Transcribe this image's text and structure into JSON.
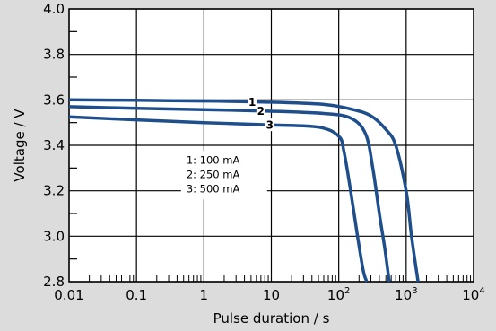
{
  "chart_data": {
    "type": "line",
    "title": "",
    "xlabel": "Pulse duration / s",
    "ylabel": "Voltage / V",
    "x_scale": "log",
    "xlim": [
      0.01,
      10000
    ],
    "ylim": [
      2.8,
      4.0
    ],
    "grid": true,
    "x_ticks": [
      {
        "value": 0.01,
        "label": "0.01",
        "base": "",
        "exp": ""
      },
      {
        "value": 0.1,
        "label": "0.1",
        "base": "",
        "exp": ""
      },
      {
        "value": 1,
        "label": "1",
        "base": "",
        "exp": ""
      },
      {
        "value": 10,
        "label": "10",
        "base": "",
        "exp": ""
      },
      {
        "value": 100,
        "label": "",
        "base": "10",
        "exp": "2"
      },
      {
        "value": 1000,
        "label": "",
        "base": "10",
        "exp": "3"
      },
      {
        "value": 10000,
        "label": "",
        "base": "10",
        "exp": "4"
      }
    ],
    "y_ticks": [
      {
        "value": 2.8,
        "label": "2.8"
      },
      {
        "value": 3.0,
        "label": "3.0"
      },
      {
        "value": 3.2,
        "label": "3.2"
      },
      {
        "value": 3.4,
        "label": "3.4"
      },
      {
        "value": 3.6,
        "label": "3.6"
      },
      {
        "value": 3.8,
        "label": "3.8"
      },
      {
        "value": 4.0,
        "label": "4.0"
      }
    ],
    "legend": {
      "placement": "center-left",
      "entries": [
        "1:  100 mA",
        "2:  250 mA",
        "3:  500 mA"
      ]
    },
    "series": [
      {
        "name": "1",
        "current": "100 mA",
        "x": [
          0.01,
          0.1,
          1,
          10,
          60,
          150,
          300,
          500,
          700,
          1000,
          1200,
          1500
        ],
        "y": [
          3.6,
          3.598,
          3.595,
          3.59,
          3.58,
          3.56,
          3.53,
          3.47,
          3.4,
          3.2,
          3.0,
          2.8
        ]
      },
      {
        "name": "2",
        "current": "250 mA",
        "x": [
          0.01,
          0.1,
          1,
          10,
          60,
          150,
          250,
          320,
          400,
          480,
          560
        ],
        "y": [
          3.57,
          3.563,
          3.557,
          3.55,
          3.54,
          3.52,
          3.45,
          3.3,
          3.1,
          2.95,
          2.8
        ]
      },
      {
        "name": "3",
        "current": "500 mA",
        "x": [
          0.01,
          0.1,
          1,
          10,
          50,
          100,
          120,
          150,
          190,
          230,
          260
        ],
        "y": [
          3.525,
          3.512,
          3.5,
          3.49,
          3.48,
          3.44,
          3.37,
          3.2,
          3.0,
          2.85,
          2.8
        ]
      }
    ],
    "colors": {
      "series": "#1e4f8c",
      "grid": "#000000",
      "plot_bg": "#ffffff",
      "page_bg": "#dcdcdc"
    }
  }
}
